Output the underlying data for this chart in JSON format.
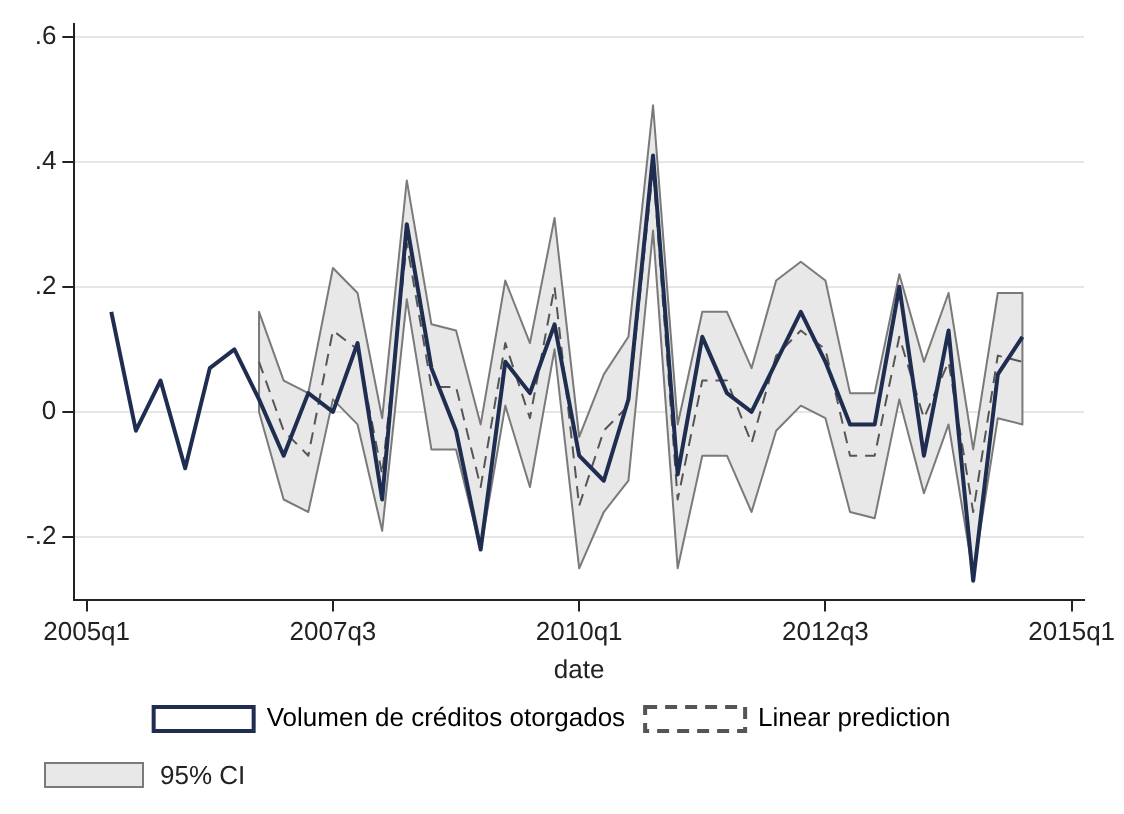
{
  "chart_data": {
    "type": "line",
    "xlabel": "date",
    "categories": [
      "2005q1",
      null,
      null,
      null,
      null,
      null,
      null,
      null,
      null,
      null,
      "2007q3",
      null,
      null,
      null,
      null,
      null,
      null,
      null,
      null,
      null,
      "2010q1",
      null,
      null,
      null,
      null,
      null,
      null,
      null,
      null,
      null,
      "2012q3",
      null,
      null,
      null,
      null,
      null,
      null,
      null,
      null,
      null,
      "2015q1"
    ],
    "ylim": [
      -0.3,
      0.62
    ],
    "yticks": [
      {
        "value": -0.2,
        "label": "-.2"
      },
      {
        "value": 0,
        "label": "0"
      },
      {
        "value": 0.2,
        "label": ".2"
      },
      {
        "value": 0.4,
        "label": ".4"
      },
      {
        "value": 0.6,
        "label": ".6"
      }
    ],
    "grid": "y",
    "legend": "bottom",
    "marker": "none",
    "annotations": [
      "95% CI"
    ],
    "series": [
      {
        "name": "Volumen de créditos otorgados",
        "color": "#1f2d50",
        "line_style": "solid",
        "values": [
          null,
          0.16,
          -0.03,
          0.05,
          -0.09,
          0.07,
          0.1,
          0.02,
          -0.07,
          0.03,
          0.0,
          0.11,
          -0.14,
          0.3,
          0.07,
          -0.03,
          -0.22,
          0.08,
          0.03,
          0.14,
          -0.07,
          -0.11,
          0.02,
          0.41,
          -0.1,
          0.12,
          0.03,
          0.0,
          0.08,
          0.16,
          0.08,
          -0.02,
          -0.02,
          0.2,
          -0.07,
          0.13,
          -0.27,
          0.06,
          0.12,
          null,
          null
        ]
      },
      {
        "name": "Linear prediction",
        "color": "#555555",
        "line_style": "dashed",
        "values": [
          null,
          null,
          null,
          null,
          null,
          null,
          null,
          0.08,
          -0.03,
          -0.07,
          0.13,
          0.1,
          -0.1,
          0.27,
          0.04,
          0.04,
          -0.12,
          0.11,
          -0.01,
          0.2,
          -0.15,
          -0.03,
          0.01,
          0.39,
          -0.14,
          0.05,
          0.05,
          -0.05,
          0.09,
          0.13,
          0.1,
          -0.07,
          -0.07,
          0.12,
          -0.01,
          0.08,
          -0.16,
          0.09,
          0.08,
          null,
          null
        ],
        "upper": [
          null,
          null,
          null,
          null,
          null,
          null,
          null,
          0.16,
          0.05,
          0.03,
          0.23,
          0.19,
          -0.01,
          0.37,
          0.14,
          0.13,
          -0.02,
          0.21,
          0.11,
          0.31,
          -0.04,
          0.06,
          0.12,
          0.49,
          -0.02,
          0.16,
          0.16,
          0.07,
          0.21,
          0.24,
          0.21,
          0.03,
          0.03,
          0.22,
          0.08,
          0.19,
          -0.06,
          0.19,
          0.19,
          null,
          null
        ],
        "lower": [
          null,
          null,
          null,
          null,
          null,
          null,
          null,
          0.0,
          -0.14,
          -0.16,
          0.02,
          -0.02,
          -0.19,
          0.18,
          -0.06,
          -0.06,
          -0.22,
          0.01,
          -0.12,
          0.1,
          -0.25,
          -0.16,
          -0.11,
          0.29,
          -0.25,
          -0.07,
          -0.07,
          -0.16,
          -0.03,
          0.01,
          -0.01,
          -0.16,
          -0.17,
          0.02,
          -0.13,
          -0.02,
          -0.26,
          -0.01,
          -0.02,
          null,
          null
        ]
      }
    ]
  }
}
